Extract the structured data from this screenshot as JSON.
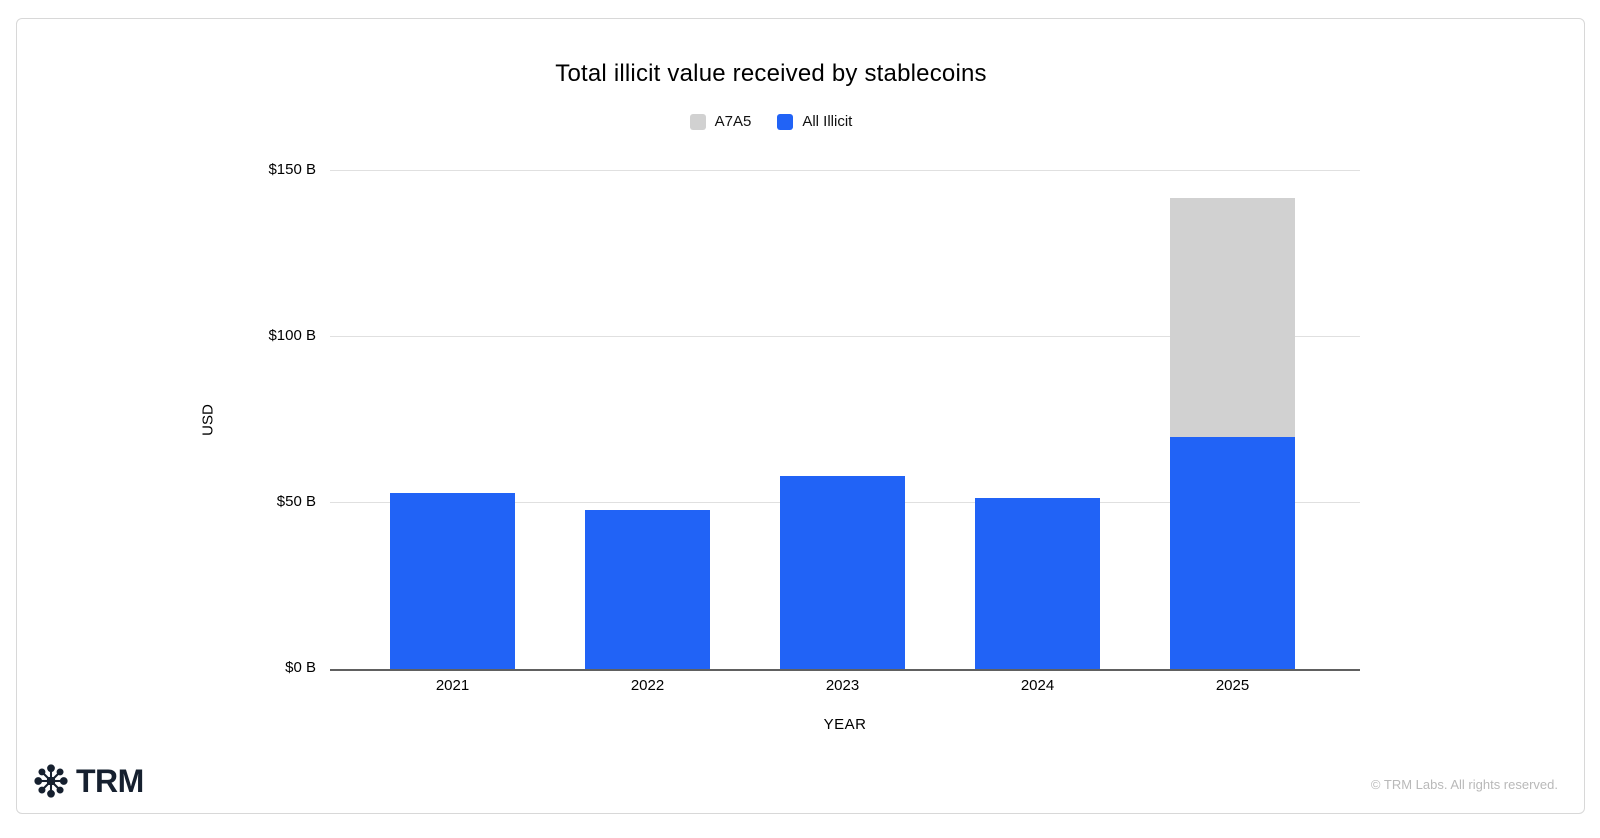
{
  "card": {
    "background": "#ffffff",
    "border_color": "#d8d8d8"
  },
  "chart_data": {
    "type": "bar",
    "stacked": true,
    "title": "Total illicit value received by stablecoins",
    "xlabel": "YEAR",
    "ylabel": "USD",
    "ylim": [
      0,
      150
    ],
    "grid": true,
    "legend_position": "top",
    "categories": [
      "2021",
      "2022",
      "2023",
      "2024",
      "2025"
    ],
    "series": [
      {
        "name": "All Illicit",
        "color": "#2163f6",
        "values": [
          53,
          48,
          58,
          51.5,
          70
        ]
      },
      {
        "name": "A7A5",
        "color": "#d1d1d1",
        "values": [
          0,
          0,
          0,
          0,
          72
        ]
      }
    ],
    "yticks": [
      {
        "value": 0,
        "label": "$0 B"
      },
      {
        "value": 50,
        "label": "$50 B"
      },
      {
        "value": 100,
        "label": "$100 B"
      },
      {
        "value": 150,
        "label": "$150 B"
      }
    ],
    "legend": [
      {
        "label": "A7A5",
        "color": "#d1d1d1"
      },
      {
        "label": "All Illicit",
        "color": "#2163f6"
      }
    ]
  },
  "footer": {
    "brand": "TRM",
    "copyright": "© TRM Labs. All rights reserved."
  },
  "colors": {
    "gridline": "#e0e0e0",
    "axis_line": "#606060",
    "bar_blue": "#2163f6",
    "bar_gray": "#d1d1d1",
    "brand_navy": "#16202f",
    "copyright_gray": "#b9b9b9"
  }
}
